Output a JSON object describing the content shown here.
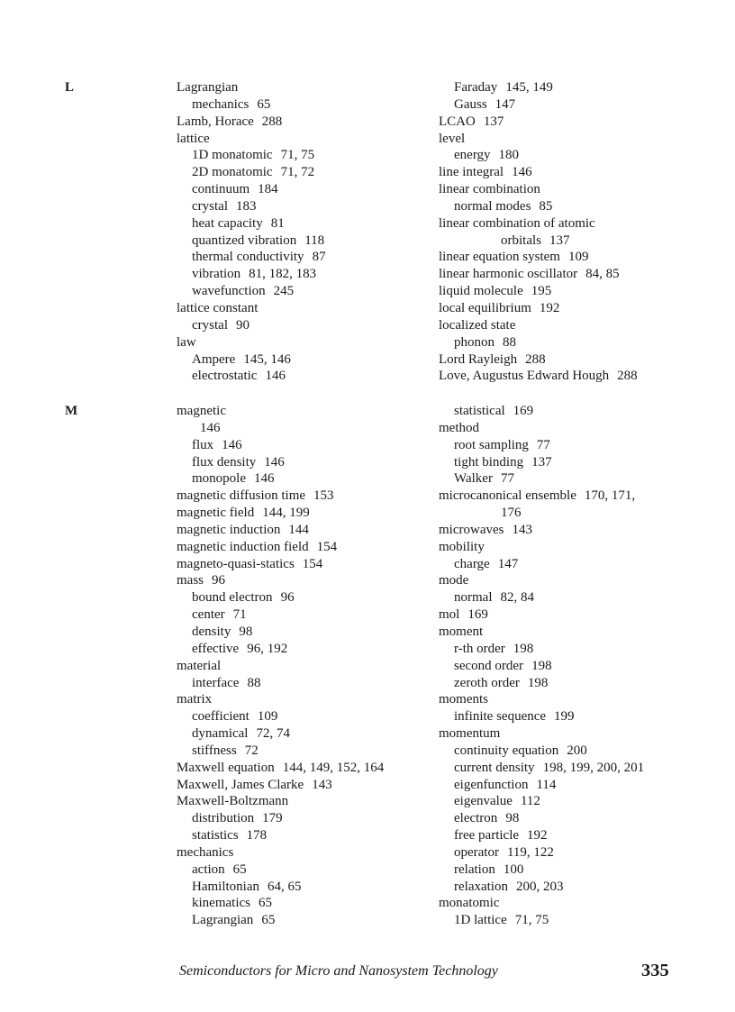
{
  "footer": {
    "book_title": "Semiconductors for Micro and Nanosystem Technology",
    "page_number": "335"
  },
  "sections": [
    {
      "letter": "L",
      "columns": {
        "left": [
          {
            "t": "Lagrangian",
            "p": "",
            "i": 0
          },
          {
            "t": "mechanics",
            "p": "65",
            "i": 1
          },
          {
            "t": "Lamb, Horace",
            "p": "288",
            "i": 0
          },
          {
            "t": "lattice",
            "p": "",
            "i": 0
          },
          {
            "t": "1D monatomic",
            "p": "71, 75",
            "i": 1
          },
          {
            "t": "2D monatomic",
            "p": "71, 72",
            "i": 1
          },
          {
            "t": "continuum",
            "p": "184",
            "i": 1
          },
          {
            "t": "crystal",
            "p": "183",
            "i": 1
          },
          {
            "t": "heat capacity",
            "p": "81",
            "i": 1
          },
          {
            "t": "quantized vibration",
            "p": "118",
            "i": 1
          },
          {
            "t": "thermal conductivity",
            "p": "87",
            "i": 1
          },
          {
            "t": "vibration",
            "p": "81, 182, 183",
            "i": 1
          },
          {
            "t": "wavefunction",
            "p": "245",
            "i": 1
          },
          {
            "t": "lattice constant",
            "p": "",
            "i": 0
          },
          {
            "t": "crystal",
            "p": "90",
            "i": 1
          },
          {
            "t": "law",
            "p": "",
            "i": 0
          },
          {
            "t": "Ampere",
            "p": "145, 146",
            "i": 1
          },
          {
            "t": "electrostatic",
            "p": "146",
            "i": 1
          }
        ],
        "right": [
          {
            "t": "Faraday",
            "p": "145, 149",
            "i": 1
          },
          {
            "t": "Gauss",
            "p": "147",
            "i": 1
          },
          {
            "t": "LCAO",
            "p": "137",
            "i": 0
          },
          {
            "t": "level",
            "p": "",
            "i": 0
          },
          {
            "t": "energy",
            "p": "180",
            "i": 1
          },
          {
            "t": "line integral",
            "p": "146",
            "i": 0
          },
          {
            "t": "linear combination",
            "p": "",
            "i": 0
          },
          {
            "t": "normal modes",
            "p": "85",
            "i": 1
          },
          {
            "t": "linear combination of atomic",
            "p": "",
            "i": 0
          },
          {
            "t": "orbitals",
            "p": "137",
            "i": 3
          },
          {
            "t": "linear equation system",
            "p": "109",
            "i": 0
          },
          {
            "t": "linear harmonic oscillator",
            "p": "84, 85",
            "i": 0
          },
          {
            "t": "liquid molecule",
            "p": "195",
            "i": 0
          },
          {
            "t": "local equilibrium",
            "p": "192",
            "i": 0
          },
          {
            "t": "localized state",
            "p": "",
            "i": 0
          },
          {
            "t": "phonon",
            "p": "88",
            "i": 1
          },
          {
            "t": "Lord Rayleigh",
            "p": "288",
            "i": 0
          },
          {
            "t": "Love, Augustus Edward Hough",
            "p": "288",
            "i": 0
          }
        ]
      }
    },
    {
      "letter": "M",
      "columns": {
        "left": [
          {
            "t": "magnetic",
            "p": "",
            "i": 0
          },
          {
            "t": "",
            "p": "146",
            "i": 2
          },
          {
            "t": "flux",
            "p": "146",
            "i": 1
          },
          {
            "t": "flux density",
            "p": "146",
            "i": 1
          },
          {
            "t": "monopole",
            "p": "146",
            "i": 1
          },
          {
            "t": "magnetic diffusion time",
            "p": "153",
            "i": 0
          },
          {
            "t": "magnetic field",
            "p": "144, 199",
            "i": 0
          },
          {
            "t": "magnetic induction",
            "p": "144",
            "i": 0
          },
          {
            "t": "magnetic induction field",
            "p": "154",
            "i": 0
          },
          {
            "t": "magneto-quasi-statics",
            "p": "154",
            "i": 0
          },
          {
            "t": "mass",
            "p": "96",
            "i": 0
          },
          {
            "t": "bound electron",
            "p": "96",
            "i": 1
          },
          {
            "t": "center",
            "p": "71",
            "i": 1
          },
          {
            "t": "density",
            "p": "98",
            "i": 1
          },
          {
            "t": "effective",
            "p": "96, 192",
            "i": 1
          },
          {
            "t": "material",
            "p": "",
            "i": 0
          },
          {
            "t": "interface",
            "p": "88",
            "i": 1
          },
          {
            "t": "matrix",
            "p": "",
            "i": 0
          },
          {
            "t": "coefficient",
            "p": "109",
            "i": 1
          },
          {
            "t": "dynamical",
            "p": "72, 74",
            "i": 1
          },
          {
            "t": "stiffness",
            "p": "72",
            "i": 1
          },
          {
            "t": "Maxwell equation",
            "p": "144, 149, 152, 164",
            "i": 0
          },
          {
            "t": "Maxwell, James Clarke",
            "p": "143",
            "i": 0
          },
          {
            "t": "Maxwell-Boltzmann",
            "p": "",
            "i": 0
          },
          {
            "t": "distribution",
            "p": "179",
            "i": 1
          },
          {
            "t": "statistics",
            "p": "178",
            "i": 1
          },
          {
            "t": "mechanics",
            "p": "",
            "i": 0
          },
          {
            "t": "action",
            "p": "65",
            "i": 1
          },
          {
            "t": "Hamiltonian",
            "p": "64, 65",
            "i": 1
          },
          {
            "t": "kinematics",
            "p": "65",
            "i": 1
          },
          {
            "t": "Lagrangian",
            "p": "65",
            "i": 1
          }
        ],
        "right": [
          {
            "t": "statistical",
            "p": "169",
            "i": 1
          },
          {
            "t": "method",
            "p": "",
            "i": 0
          },
          {
            "t": "root sampling",
            "p": "77",
            "i": 1
          },
          {
            "t": "tight binding",
            "p": "137",
            "i": 1
          },
          {
            "t": "Walker",
            "p": "77",
            "i": 1
          },
          {
            "t": "microcanonical ensemble",
            "p": "170, 171,",
            "i": 0
          },
          {
            "t": "",
            "p": "176",
            "i": 3
          },
          {
            "t": "microwaves",
            "p": "143",
            "i": 0
          },
          {
            "t": "mobility",
            "p": "",
            "i": 0
          },
          {
            "t": "charge",
            "p": "147",
            "i": 1
          },
          {
            "t": "mode",
            "p": "",
            "i": 0
          },
          {
            "t": "normal",
            "p": "82, 84",
            "i": 1
          },
          {
            "t": "mol",
            "p": "169",
            "i": 0
          },
          {
            "t": "moment",
            "p": "",
            "i": 0
          },
          {
            "t": "r-th order",
            "p": "198",
            "i": 1
          },
          {
            "t": "second order",
            "p": "198",
            "i": 1
          },
          {
            "t": "zeroth order",
            "p": "198",
            "i": 1
          },
          {
            "t": "moments",
            "p": "",
            "i": 0
          },
          {
            "t": "infinite sequence",
            "p": "199",
            "i": 1
          },
          {
            "t": "momentum",
            "p": "",
            "i": 0
          },
          {
            "t": "continuity equation",
            "p": "200",
            "i": 1
          },
          {
            "t": "current density",
            "p": "198, 199, 200, 201",
            "i": 1
          },
          {
            "t": "eigenfunction",
            "p": "114",
            "i": 1
          },
          {
            "t": "eigenvalue",
            "p": "112",
            "i": 1
          },
          {
            "t": "electron",
            "p": "98",
            "i": 1
          },
          {
            "t": "free particle",
            "p": "192",
            "i": 1
          },
          {
            "t": "operator",
            "p": "119, 122",
            "i": 1
          },
          {
            "t": "relation",
            "p": "100",
            "i": 1
          },
          {
            "t": "relaxation",
            "p": "200, 203",
            "i": 1
          },
          {
            "t": "monatomic",
            "p": "",
            "i": 0
          },
          {
            "t": "1D lattice",
            "p": "71, 75",
            "i": 1
          }
        ]
      }
    }
  ]
}
